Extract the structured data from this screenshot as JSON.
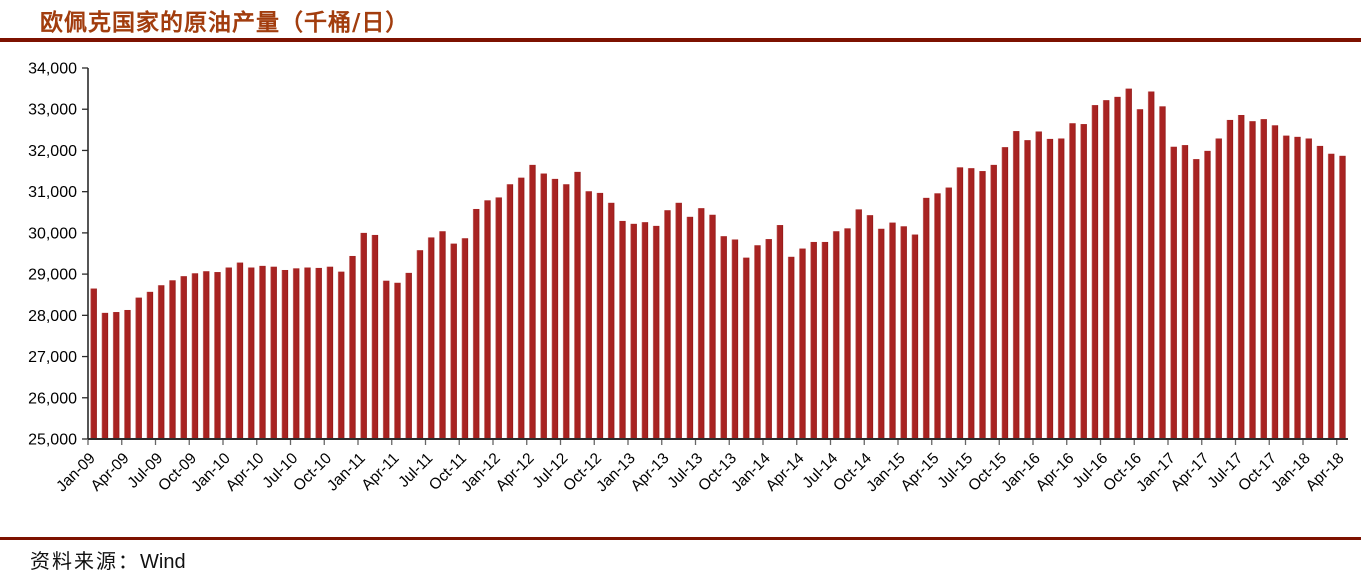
{
  "header": {
    "title": "欧佩克国家的原油产量（千桶/日）"
  },
  "footer": {
    "source_label": "资料来源：",
    "source_value": "Wind"
  },
  "colors": {
    "title": "#a23d0e",
    "rule": "#7d1100",
    "bar": "#a82322",
    "bar_highlight": "#d18f8d",
    "bar_shadow": "#8a1210",
    "axis": "#2b2b2b",
    "tick": "#666666",
    "tick_label": "#000000"
  },
  "chart_data": {
    "type": "bar",
    "title": "欧佩克国家的原油产量（千桶/日）",
    "unit": "千桶/日",
    "xlabel": "",
    "ylabel": "",
    "ylim": [
      25000,
      34000
    ],
    "ytick_step": 1000,
    "xtick_every": 3,
    "grid": false,
    "legend": false,
    "categories": [
      "Jan-09",
      "Feb-09",
      "Mar-09",
      "Apr-09",
      "May-09",
      "Jun-09",
      "Jul-09",
      "Aug-09",
      "Sep-09",
      "Oct-09",
      "Nov-09",
      "Dec-09",
      "Jan-10",
      "Feb-10",
      "Mar-10",
      "Apr-10",
      "May-10",
      "Jun-10",
      "Jul-10",
      "Aug-10",
      "Sep-10",
      "Oct-10",
      "Nov-10",
      "Dec-10",
      "Jan-11",
      "Feb-11",
      "Mar-11",
      "Apr-11",
      "May-11",
      "Jun-11",
      "Jul-11",
      "Aug-11",
      "Sep-11",
      "Oct-11",
      "Nov-11",
      "Dec-11",
      "Jan-12",
      "Feb-12",
      "Mar-12",
      "Apr-12",
      "May-12",
      "Jun-12",
      "Jul-12",
      "Aug-12",
      "Sep-12",
      "Oct-12",
      "Nov-12",
      "Dec-12",
      "Jan-13",
      "Feb-13",
      "Mar-13",
      "Apr-13",
      "May-13",
      "Jun-13",
      "Jul-13",
      "Aug-13",
      "Sep-13",
      "Oct-13",
      "Nov-13",
      "Dec-13",
      "Jan-14",
      "Feb-14",
      "Mar-14",
      "Apr-14",
      "May-14",
      "Jun-14",
      "Jul-14",
      "Aug-14",
      "Sep-14",
      "Oct-14",
      "Nov-14",
      "Dec-14",
      "Jan-15",
      "Feb-15",
      "Mar-15",
      "Apr-15",
      "May-15",
      "Jun-15",
      "Jul-15",
      "Aug-15",
      "Sep-15",
      "Oct-15",
      "Nov-15",
      "Dec-15",
      "Jan-16",
      "Feb-16",
      "Mar-16",
      "Apr-16",
      "May-16",
      "Jun-16",
      "Jul-16",
      "Aug-16",
      "Sep-16",
      "Oct-16",
      "Nov-16",
      "Dec-16",
      "Jan-17",
      "Feb-17",
      "Mar-17",
      "Apr-17",
      "May-17",
      "Jun-17",
      "Jul-17",
      "Aug-17",
      "Sep-17",
      "Oct-17",
      "Nov-17",
      "Dec-17",
      "Jan-18",
      "Feb-18",
      "Mar-18",
      "Apr-18"
    ],
    "values": [
      28650,
      28060,
      28080,
      28130,
      28430,
      28570,
      28730,
      28850,
      28950,
      29020,
      29070,
      29050,
      29160,
      29280,
      29160,
      29200,
      29180,
      29100,
      29140,
      29160,
      29150,
      29180,
      29060,
      29440,
      30000,
      29950,
      28840,
      28790,
      29030,
      29580,
      29890,
      30040,
      29740,
      29870,
      30580,
      30790,
      30860,
      31180,
      31340,
      31650,
      31440,
      31310,
      31180,
      31480,
      31010,
      30970,
      30730,
      30290,
      30220,
      30260,
      30170,
      30550,
      30730,
      30390,
      30600,
      30440,
      29920,
      29840,
      29400,
      29700,
      29850,
      30190,
      29420,
      29620,
      29780,
      29780,
      30040,
      30110,
      30570,
      30430,
      30100,
      30250,
      30160,
      29960,
      30850,
      30960,
      31100,
      31590,
      31570,
      31500,
      31650,
      32080,
      32470,
      32250,
      32460,
      32280,
      32290,
      32660,
      32640,
      33100,
      33220,
      33300,
      33500,
      33000,
      33430,
      33070,
      32090,
      32130,
      31790,
      31990,
      32290,
      32740,
      32860,
      32710,
      32760,
      32610,
      32360,
      32330,
      32290,
      32110,
      31920,
      31870
    ]
  }
}
